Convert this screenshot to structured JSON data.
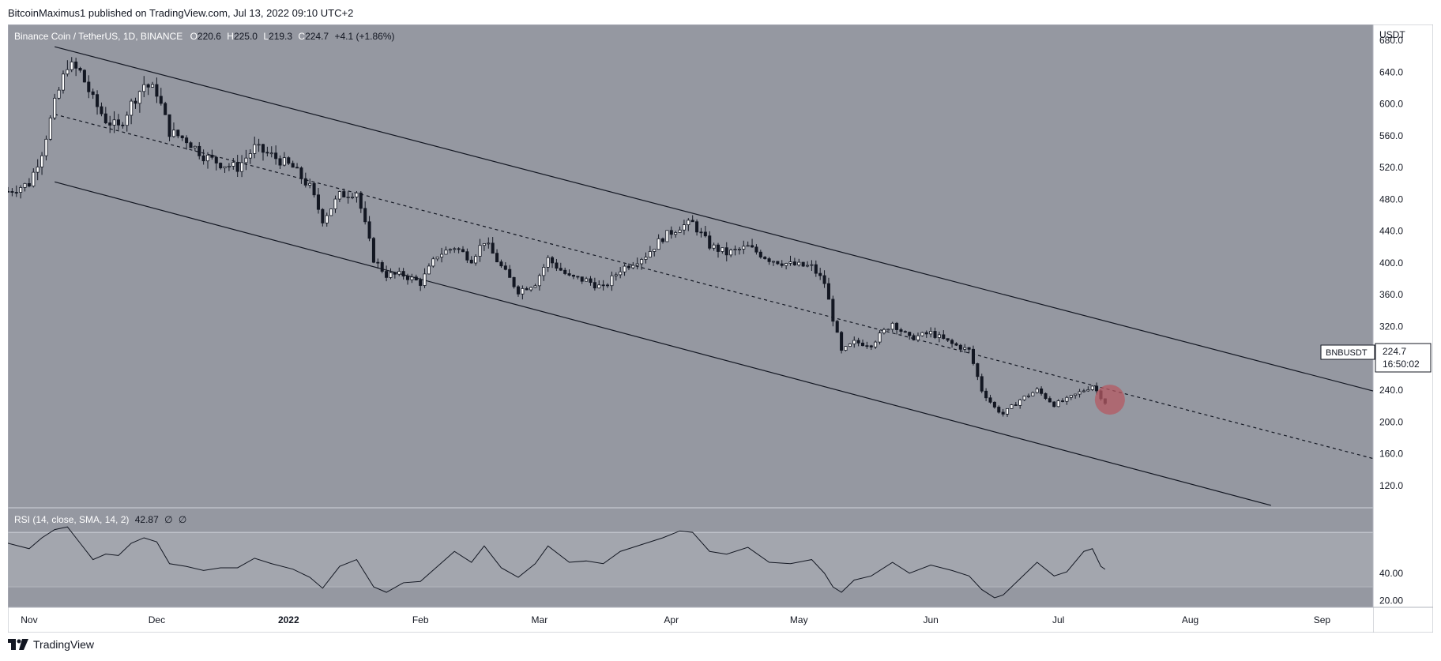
{
  "header": {
    "published": "BitcoinMaximus1 published on TradingView.com, Jul 13, 2022 09:10 UTC+2"
  },
  "footer": {
    "brand": "TradingView"
  },
  "chart_data": [
    {
      "type": "candlestick",
      "title": "Binance Coin / TetherUS, 1D, BINANCE",
      "symbol": "BNBUSDT",
      "ohlc_label": {
        "O": "220.6",
        "H": "225.0",
        "L": "219.3",
        "C": "224.7",
        "change": "+4.1 (+1.86%)"
      },
      "price_tag": {
        "label": "BNBUSDT",
        "price": "224.7",
        "countdown": "16:50:02"
      },
      "currency": "USDT",
      "y_ticks": [
        "680.0",
        "640.0",
        "600.0",
        "560.0",
        "520.0",
        "480.0",
        "440.0",
        "400.0",
        "360.0",
        "320.0",
        "280.0",
        "240.0",
        "200.0",
        "160.0",
        "120.0"
      ],
      "ylim": [
        92,
        700
      ],
      "x_labels": [
        "Nov",
        "Dec",
        "2022",
        "Feb",
        "Mar",
        "Apr",
        "May",
        "Jun",
        "Jul",
        "Aug",
        "Sep"
      ],
      "xlim": [
        "2021-10-27",
        "2022-09-13"
      ],
      "price_path": [
        [
          "2021-10-27",
          490
        ],
        [
          "2021-11-01",
          500
        ],
        [
          "2021-11-04",
          540
        ],
        [
          "2021-11-07",
          600
        ],
        [
          "2021-11-10",
          650
        ],
        [
          "2021-11-13",
          640
        ],
        [
          "2021-11-16",
          605
        ],
        [
          "2021-11-19",
          580
        ],
        [
          "2021-11-22",
          570
        ],
        [
          "2021-11-25",
          600
        ],
        [
          "2021-11-28",
          625
        ],
        [
          "2021-12-01",
          615
        ],
        [
          "2021-12-04",
          565
        ],
        [
          "2021-12-08",
          555
        ],
        [
          "2021-12-12",
          535
        ],
        [
          "2021-12-16",
          525
        ],
        [
          "2021-12-20",
          520
        ],
        [
          "2021-12-24",
          545
        ],
        [
          "2021-12-28",
          535
        ],
        [
          "2022-01-02",
          520
        ],
        [
          "2022-01-06",
          495
        ],
        [
          "2022-01-09",
          455
        ],
        [
          "2022-01-13",
          485
        ],
        [
          "2022-01-17",
          490
        ],
        [
          "2022-01-21",
          405
        ],
        [
          "2022-01-24",
          385
        ],
        [
          "2022-01-28",
          385
        ],
        [
          "2022-02-01",
          375
        ],
        [
          "2022-02-05",
          410
        ],
        [
          "2022-02-09",
          420
        ],
        [
          "2022-02-13",
          405
        ],
        [
          "2022-02-16",
          428
        ],
        [
          "2022-02-20",
          395
        ],
        [
          "2022-02-24",
          365
        ],
        [
          "2022-02-28",
          375
        ],
        [
          "2022-03-03",
          405
        ],
        [
          "2022-03-08",
          382
        ],
        [
          "2022-03-12",
          378
        ],
        [
          "2022-03-16",
          368
        ],
        [
          "2022-03-20",
          392
        ],
        [
          "2022-03-26",
          410
        ],
        [
          "2022-03-30",
          432
        ],
        [
          "2022-04-03",
          446
        ],
        [
          "2022-04-06",
          450
        ],
        [
          "2022-04-10",
          422
        ],
        [
          "2022-04-14",
          412
        ],
        [
          "2022-04-19",
          420
        ],
        [
          "2022-04-24",
          405
        ],
        [
          "2022-04-29",
          398
        ],
        [
          "2022-05-04",
          395
        ],
        [
          "2022-05-07",
          375
        ],
        [
          "2022-05-09",
          330
        ],
        [
          "2022-05-11",
          288
        ],
        [
          "2022-05-14",
          300
        ],
        [
          "2022-05-18",
          298
        ],
        [
          "2022-05-23",
          325
        ],
        [
          "2022-05-27",
          305
        ],
        [
          "2022-06-01",
          312
        ],
        [
          "2022-06-06",
          298
        ],
        [
          "2022-06-10",
          290
        ],
        [
          "2022-06-13",
          240
        ],
        [
          "2022-06-16",
          218
        ],
        [
          "2022-06-18",
          210
        ],
        [
          "2022-06-22",
          228
        ],
        [
          "2022-06-26",
          240
        ],
        [
          "2022-06-30",
          222
        ],
        [
          "2022-07-03",
          228
        ],
        [
          "2022-07-07",
          240
        ],
        [
          "2022-07-09",
          246
        ],
        [
          "2022-07-11",
          232
        ],
        [
          "2022-07-12",
          224.7
        ]
      ],
      "channel": {
        "upper": [
          [
            "2021-11-07",
            672
          ],
          [
            "2022-09-13",
            239
          ]
        ],
        "middle": [
          [
            "2021-11-07",
            587
          ],
          [
            "2022-09-13",
            154
          ]
        ],
        "lower": [
          [
            "2021-11-07",
            502
          ],
          [
            "2022-08-20",
            95
          ]
        ]
      },
      "highlight": {
        "date": "2022-07-12",
        "value": 228,
        "color": "#b65a63"
      }
    },
    {
      "type": "line",
      "title": "RSI (14, close, SMA, 14, 2)",
      "values_label": [
        "42.87",
        "∅",
        "∅"
      ],
      "y_ticks": [
        "40.00",
        "20.00"
      ],
      "ylim": [
        15,
        88
      ],
      "band": [
        30,
        70
      ],
      "series": [
        {
          "values": [
            [
              "2021-10-27",
              62
            ],
            [
              "2021-11-01",
              58
            ],
            [
              "2021-11-04",
              66
            ],
            [
              "2021-11-07",
              72
            ],
            [
              "2021-11-10",
              74
            ],
            [
              "2021-11-13",
              62
            ],
            [
              "2021-11-16",
              50
            ],
            [
              "2021-11-19",
              54
            ],
            [
              "2021-11-22",
              53
            ],
            [
              "2021-11-25",
              62
            ],
            [
              "2021-11-28",
              66
            ],
            [
              "2021-12-01",
              63
            ],
            [
              "2021-12-04",
              47
            ],
            [
              "2021-12-08",
              45
            ],
            [
              "2021-12-12",
              42
            ],
            [
              "2021-12-16",
              44
            ],
            [
              "2021-12-20",
              44
            ],
            [
              "2021-12-24",
              51
            ],
            [
              "2021-12-28",
              47
            ],
            [
              "2022-01-02",
              43
            ],
            [
              "2022-01-06",
              37
            ],
            [
              "2022-01-09",
              29
            ],
            [
              "2022-01-13",
              45
            ],
            [
              "2022-01-17",
              50
            ],
            [
              "2022-01-21",
              30
            ],
            [
              "2022-01-24",
              26
            ],
            [
              "2022-01-28",
              33
            ],
            [
              "2022-02-01",
              34
            ],
            [
              "2022-02-05",
              45
            ],
            [
              "2022-02-09",
              56
            ],
            [
              "2022-02-13",
              48
            ],
            [
              "2022-02-16",
              60
            ],
            [
              "2022-02-20",
              44
            ],
            [
              "2022-02-24",
              37
            ],
            [
              "2022-02-28",
              47
            ],
            [
              "2022-03-03",
              60
            ],
            [
              "2022-03-08",
              48
            ],
            [
              "2022-03-12",
              49
            ],
            [
              "2022-03-16",
              47
            ],
            [
              "2022-03-20",
              56
            ],
            [
              "2022-03-26",
              62
            ],
            [
              "2022-03-30",
              66
            ],
            [
              "2022-04-03",
              71
            ],
            [
              "2022-04-06",
              70
            ],
            [
              "2022-04-10",
              56
            ],
            [
              "2022-04-14",
              54
            ],
            [
              "2022-04-19",
              59
            ],
            [
              "2022-04-24",
              48
            ],
            [
              "2022-04-29",
              47
            ],
            [
              "2022-05-04",
              50
            ],
            [
              "2022-05-07",
              40
            ],
            [
              "2022-05-09",
              30
            ],
            [
              "2022-05-11",
              26
            ],
            [
              "2022-05-14",
              35
            ],
            [
              "2022-05-18",
              38
            ],
            [
              "2022-05-23",
              48
            ],
            [
              "2022-05-27",
              40
            ],
            [
              "2022-06-01",
              46
            ],
            [
              "2022-06-06",
              42
            ],
            [
              "2022-06-10",
              38
            ],
            [
              "2022-06-13",
              28
            ],
            [
              "2022-06-16",
              22
            ],
            [
              "2022-06-18",
              24
            ],
            [
              "2022-06-22",
              36
            ],
            [
              "2022-06-26",
              48
            ],
            [
              "2022-06-30",
              38
            ],
            [
              "2022-07-03",
              41
            ],
            [
              "2022-07-07",
              56
            ],
            [
              "2022-07-09",
              58
            ],
            [
              "2022-07-11",
              45
            ],
            [
              "2022-07-12",
              42.87
            ]
          ]
        }
      ]
    }
  ],
  "colors": {
    "pane_bg": "#9598a1",
    "rsi_band": "#a3a6ae",
    "axis_bg": "#ffffff",
    "candle": "#131722",
    "line": "#131722"
  }
}
